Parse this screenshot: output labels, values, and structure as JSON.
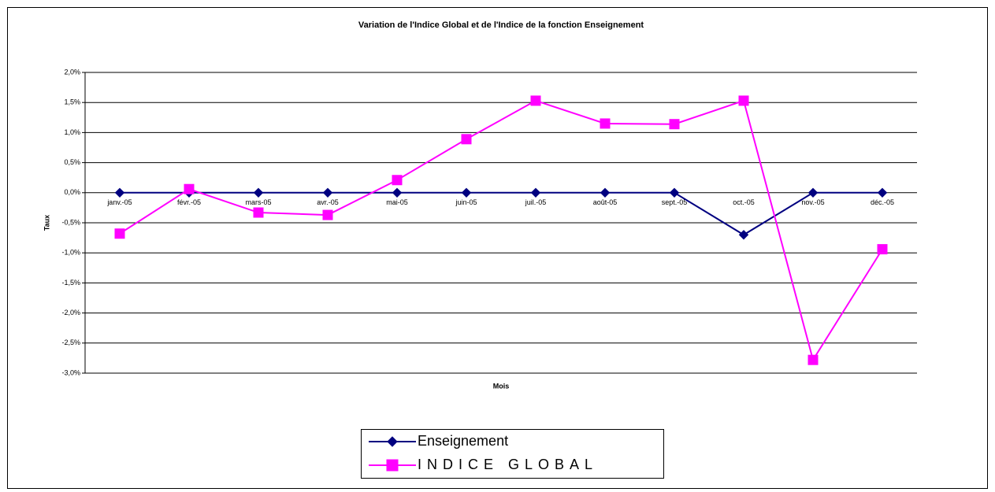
{
  "chart_data": {
    "type": "line",
    "title": "Variation de l'Indice Global et de l'Indice de la fonction Enseignement",
    "x_label": "Mois",
    "y_label": "Taux",
    "categories": [
      "janv.-05",
      "févr.-05",
      "mars-05",
      "avr.-05",
      "mai-05",
      "juin-05",
      "juil.-05",
      "août-05",
      "sept.-05",
      "oct.-05",
      "nov.-05",
      "déc.-05"
    ],
    "series": [
      {
        "name": "Enseignement",
        "color": "#000080",
        "marker": "diamond",
        "values": [
          0,
          0,
          0,
          0,
          0,
          0,
          0,
          0,
          0,
          -0.7,
          0,
          0
        ]
      },
      {
        "name": "INDICE GLOBAL",
        "color": "#ff00ff",
        "marker": "square",
        "values": [
          -0.68,
          0.06,
          -0.33,
          -0.37,
          0.21,
          0.89,
          1.53,
          1.15,
          1.14,
          1.53,
          -2.78,
          -0.94
        ]
      }
    ],
    "ylim": [
      -3.0,
      2.0
    ],
    "yticks": [
      {
        "value": -3.0,
        "label": "-3,0%"
      },
      {
        "value": -2.5,
        "label": "-2,5%"
      },
      {
        "value": -2.0,
        "label": "-2,0%"
      },
      {
        "value": -1.5,
        "label": "-1,5%"
      },
      {
        "value": -1.0,
        "label": "-1,0%"
      },
      {
        "value": -0.5,
        "label": "-0,5%"
      },
      {
        "value": 0.0,
        "label": "0,0%"
      },
      {
        "value": 0.5,
        "label": "0,5%"
      },
      {
        "value": 1.0,
        "label": "1,0%"
      },
      {
        "value": 1.5,
        "label": "1,5%"
      },
      {
        "value": 2.0,
        "label": "2,0%"
      }
    ],
    "grid": true,
    "legend": "bottom"
  }
}
